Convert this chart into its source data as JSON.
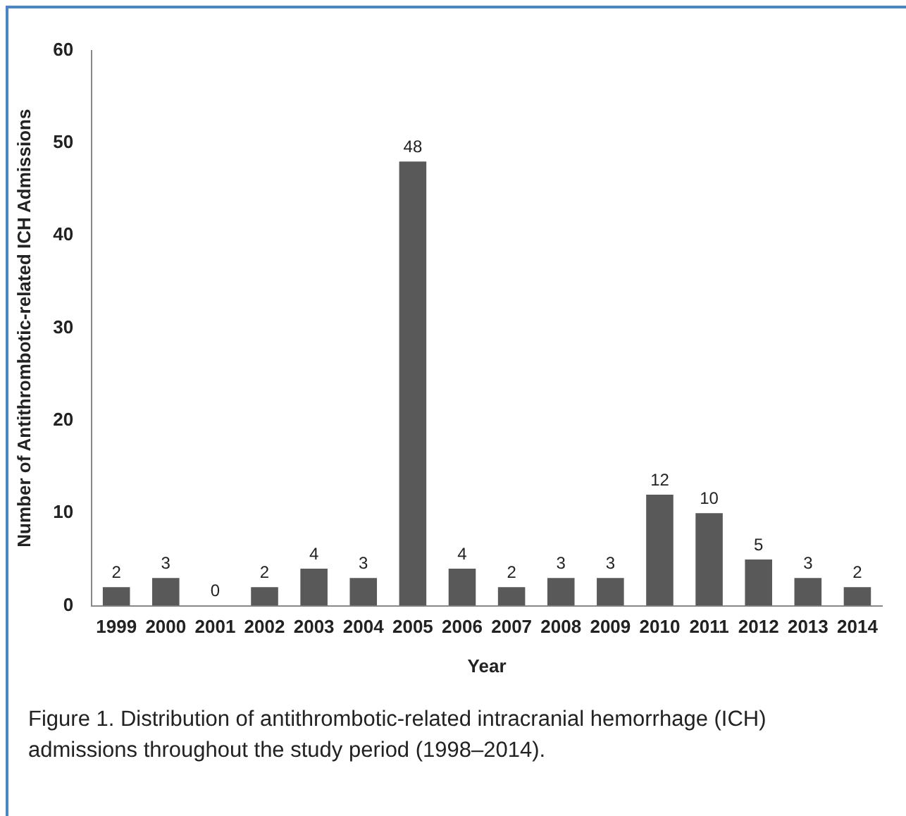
{
  "chart_data": {
    "type": "bar",
    "xlabel": "Year",
    "ylabel": "Number of Antithrombotic-related ICH Admissions",
    "categories": [
      "1999",
      "2000",
      "2001",
      "2002",
      "2003",
      "2004",
      "2005",
      "2006",
      "2007",
      "2008",
      "2009",
      "2010",
      "2011",
      "2012",
      "2013",
      "2014"
    ],
    "values": [
      2,
      3,
      0,
      2,
      4,
      3,
      48,
      4,
      2,
      3,
      3,
      12,
      10,
      5,
      3,
      2
    ],
    "color": "#595959",
    "ylim": [
      0,
      60
    ],
    "yticks": [
      0,
      10,
      20,
      30,
      40,
      50,
      60
    ],
    "grid": false,
    "data_labels": true,
    "legend": false,
    "annotations": [
      "Figure 1.  Distribution of antithrombotic-related intracranial hemorrhage (ICH) admissions throughout the study period (1998–2014)."
    ]
  }
}
